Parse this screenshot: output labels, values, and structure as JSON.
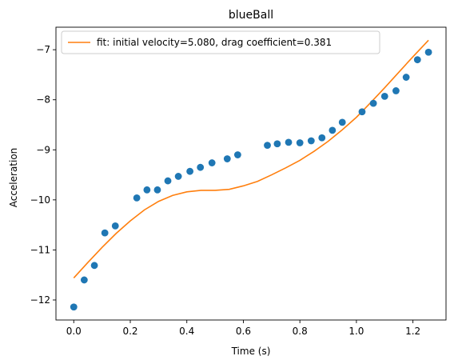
{
  "chart_data": {
    "type": "scatter",
    "title": "blueBall",
    "xlabel": "Time (s)",
    "ylabel": "Acceleration",
    "xlim": [
      -0.063,
      1.317
    ],
    "ylim": [
      -12.4,
      -6.55
    ],
    "xticks": [
      0.0,
      0.2,
      0.4,
      0.6,
      0.8,
      1.0,
      1.2
    ],
    "xtick_labels": [
      "0.0",
      "0.2",
      "0.4",
      "0.6",
      "0.8",
      "1.0",
      "1.2"
    ],
    "yticks": [
      -12,
      -11,
      -10,
      -9,
      -8,
      -7
    ],
    "ytick_labels": [
      "−12",
      "−11",
      "−10",
      "−9",
      "−8",
      "−7"
    ],
    "grid": false,
    "legend_position": "top-left",
    "series": [
      {
        "kind": "scatter",
        "color": "#1f77b4",
        "x": [
          0.0,
          0.037,
          0.073,
          0.11,
          0.147,
          0.223,
          0.259,
          0.296,
          0.333,
          0.37,
          0.411,
          0.448,
          0.489,
          0.543,
          0.58,
          0.685,
          0.72,
          0.76,
          0.8,
          0.84,
          0.878,
          0.915,
          0.95,
          1.02,
          1.06,
          1.1,
          1.14,
          1.176,
          1.216,
          1.255
        ],
        "y": [
          -12.14,
          -11.6,
          -11.31,
          -10.66,
          -10.52,
          -9.96,
          -9.8,
          -9.8,
          -9.62,
          -9.53,
          -9.43,
          -9.35,
          -9.26,
          -9.18,
          -9.1,
          -8.91,
          -8.88,
          -8.85,
          -8.86,
          -8.82,
          -8.76,
          -8.61,
          -8.45,
          -8.24,
          -8.07,
          -7.93,
          -7.82,
          -7.55,
          -7.2,
          -7.05
        ]
      },
      {
        "kind": "line",
        "name": "fit: initial velocity=5.080, drag coefficient=0.381",
        "color": "#ff7f0e",
        "x": [
          0.0,
          0.05,
          0.1,
          0.15,
          0.2,
          0.25,
          0.3,
          0.35,
          0.4,
          0.45,
          0.5,
          0.55,
          0.6,
          0.65,
          0.7,
          0.75,
          0.8,
          0.85,
          0.9,
          0.95,
          1.0,
          1.05,
          1.1,
          1.15,
          1.2,
          1.255
        ],
        "y": [
          -11.56,
          -11.25,
          -10.95,
          -10.67,
          -10.42,
          -10.2,
          -10.03,
          -9.91,
          -9.84,
          -9.81,
          -9.81,
          -9.79,
          -9.72,
          -9.63,
          -9.5,
          -9.36,
          -9.21,
          -9.03,
          -8.83,
          -8.6,
          -8.35,
          -8.06,
          -7.76,
          -7.45,
          -7.14,
          -6.81
        ]
      }
    ]
  }
}
